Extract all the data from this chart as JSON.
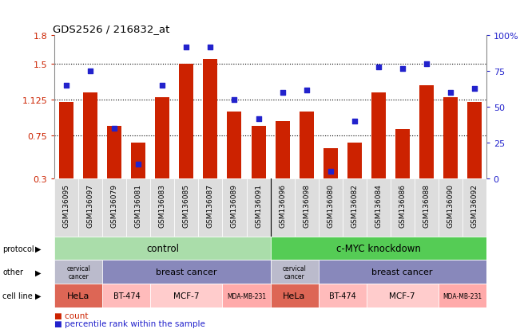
{
  "title": "GDS2526 / 216832_at",
  "samples": [
    "GSM136095",
    "GSM136097",
    "GSM136079",
    "GSM136081",
    "GSM136083",
    "GSM136085",
    "GSM136087",
    "GSM136089",
    "GSM136091",
    "GSM136096",
    "GSM136098",
    "GSM136080",
    "GSM136082",
    "GSM136084",
    "GSM136086",
    "GSM136088",
    "GSM136090",
    "GSM136092"
  ],
  "bar_values": [
    1.1,
    1.2,
    0.85,
    0.68,
    1.15,
    1.5,
    1.55,
    1.0,
    0.85,
    0.9,
    1.0,
    0.62,
    0.68,
    1.2,
    0.82,
    1.28,
    1.15,
    1.1
  ],
  "dot_values": [
    65,
    75,
    35,
    10,
    65,
    92,
    92,
    55,
    42,
    60,
    62,
    5,
    40,
    78,
    77,
    80,
    60,
    63
  ],
  "y_min": 0.3,
  "y_max": 1.8,
  "y_ticks": [
    0.3,
    0.75,
    1.125,
    1.5,
    1.8
  ],
  "y_tick_labels": [
    "0.3",
    "0.75",
    "1.125",
    "1.5",
    "1.8"
  ],
  "y2_ticks": [
    0,
    25,
    50,
    75,
    100
  ],
  "y2_tick_labels": [
    "0",
    "25",
    "50",
    "75",
    "100%"
  ],
  "dotted_lines": [
    0.75,
    1.125,
    1.5
  ],
  "bar_color": "#cc2200",
  "dot_color": "#2222cc",
  "protocol_color_light": "#aaddaa",
  "protocol_color_dark": "#55cc55",
  "other_cervical_color": "#bbbbcc",
  "other_breast_color": "#8888bb",
  "cell_hela_color": "#dd6655",
  "cell_bt474_color": "#ffbbbb",
  "cell_mcf7_color": "#ffcccc",
  "cell_mdamb231_color": "#ffaaaa",
  "left_label_color": "#cc2200",
  "right_label_color": "#2222cc",
  "tick_bg_color": "#dddddd",
  "fig_bg_color": "#ffffff"
}
